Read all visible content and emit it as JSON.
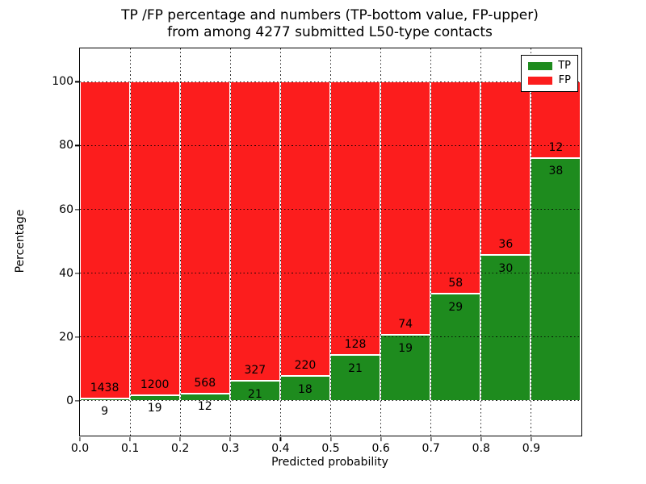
{
  "figure": {
    "title_line1": "TP /FP percentage and numbers (TP-bottom value, FP-upper)",
    "title_line2": "from among 4277 submitted L50-type contacts"
  },
  "chart_data": {
    "type": "bar",
    "stacked": true,
    "title": "TP /FP percentage and numbers (TP-bottom value, FP-upper)\nfrom among 4277 submitted L50-type contacts",
    "xlabel": "Predicted probability",
    "ylabel": "Percentage",
    "xlim": [
      0.0,
      1.0
    ],
    "ylim": [
      -11,
      110.5
    ],
    "x_ticks": [
      0.0,
      0.1,
      0.2,
      0.3,
      0.4,
      0.5,
      0.6,
      0.7,
      0.8,
      0.9
    ],
    "x_tick_labels": [
      "0.0",
      "0.1",
      "0.2",
      "0.3",
      "0.4",
      "0.5",
      "0.6",
      "0.7",
      "0.8",
      "0.9"
    ],
    "y_ticks": [
      0,
      20,
      40,
      60,
      80,
      100
    ],
    "grid": "dotted black, both axes, drawn on top of bars",
    "total_contacts": 4277,
    "colors": {
      "tp": "#1e8b1e",
      "fp": "#fc1d1d",
      "bar_edge": "#ffffff"
    },
    "legend": {
      "position": "upper right",
      "entries": [
        {
          "label": "TP",
          "color": "#1e8b1e"
        },
        {
          "label": "FP",
          "color": "#fc1d1d"
        }
      ]
    },
    "bins": [
      {
        "x_range": [
          0.0,
          0.1
        ],
        "tp_count": 9,
        "fp_count": 1438,
        "tp_pct": 0.62,
        "fp_pct": 99.38
      },
      {
        "x_range": [
          0.1,
          0.2
        ],
        "tp_count": 19,
        "fp_count": 1200,
        "tp_pct": 1.56,
        "fp_pct": 98.44
      },
      {
        "x_range": [
          0.2,
          0.3
        ],
        "tp_count": 12,
        "fp_count": 568,
        "tp_pct": 2.07,
        "fp_pct": 97.93
      },
      {
        "x_range": [
          0.3,
          0.4
        ],
        "tp_count": 21,
        "fp_count": 327,
        "tp_pct": 6.03,
        "fp_pct": 93.97
      },
      {
        "x_range": [
          0.4,
          0.5
        ],
        "tp_count": 18,
        "fp_count": 220,
        "tp_pct": 7.56,
        "fp_pct": 92.44
      },
      {
        "x_range": [
          0.5,
          0.6
        ],
        "tp_count": 21,
        "fp_count": 128,
        "tp_pct": 14.09,
        "fp_pct": 85.91
      },
      {
        "x_range": [
          0.6,
          0.7
        ],
        "tp_count": 19,
        "fp_count": 74,
        "tp_pct": 20.43,
        "fp_pct": 79.57
      },
      {
        "x_range": [
          0.7,
          0.8
        ],
        "tp_count": 29,
        "fp_count": 58,
        "tp_pct": 33.33,
        "fp_pct": 66.67
      },
      {
        "x_range": [
          0.8,
          0.9
        ],
        "tp_count": 30,
        "fp_count": 36,
        "tp_pct": 45.45,
        "fp_pct": 54.55
      },
      {
        "x_range": [
          0.9,
          1.0
        ],
        "tp_count": 38,
        "fp_count": 12,
        "tp_pct": 76.0,
        "fp_pct": 24.0
      }
    ]
  }
}
